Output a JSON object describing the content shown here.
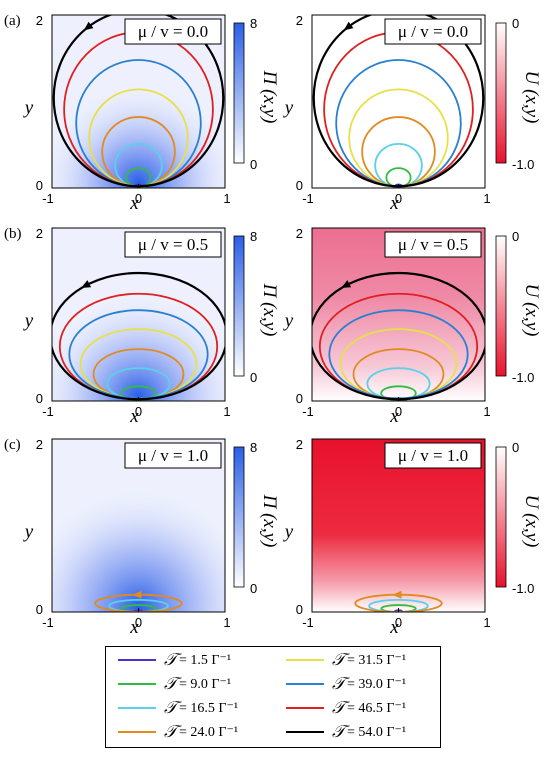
{
  "chart_data": [
    {
      "type": "heatmap",
      "panel_label": "(a)",
      "quantity": "Π (x,y)",
      "xlim": [
        -1,
        1
      ],
      "ylim": [
        0,
        2
      ],
      "x_ticks": [
        "-1",
        "0",
        "1"
      ],
      "y_ticks": [
        "0",
        "2"
      ],
      "xlabel": "x",
      "ylabel": "y",
      "annotation": "μ / v = 0.0",
      "colorbar": {
        "label": "Π (x,y)",
        "min": "0",
        "max": "8",
        "cmap": [
          "#ffffff",
          "#2a5fe6"
        ]
      }
    },
    {
      "type": "heatmap",
      "panel_label": "",
      "quantity": "U (x,y)",
      "xlim": [
        -1,
        1
      ],
      "ylim": [
        0,
        2
      ],
      "x_ticks": [
        "-1",
        "0",
        "1"
      ],
      "y_ticks": [
        "0",
        "2"
      ],
      "xlabel": "x",
      "ylabel": "y",
      "annotation": "μ / v = 0.0",
      "colorbar": {
        "label": "U (x,y)",
        "min": "-1.0",
        "max": "0",
        "cmap": [
          "#e8112d",
          "#ffffff"
        ]
      }
    },
    {
      "type": "heatmap",
      "panel_label": "(b)",
      "quantity": "Π (x,y)",
      "xlim": [
        -1,
        1
      ],
      "ylim": [
        0,
        2
      ],
      "x_ticks": [
        "-1",
        "0",
        "1"
      ],
      "y_ticks": [
        "0",
        "2"
      ],
      "xlabel": "x",
      "ylabel": "y",
      "annotation": "μ / v = 0.5",
      "colorbar": {
        "label": "Π (x,y)",
        "min": "0",
        "max": "8",
        "cmap": [
          "#ffffff",
          "#2a5fe6"
        ]
      }
    },
    {
      "type": "heatmap",
      "panel_label": "",
      "quantity": "U (x,y)",
      "xlim": [
        -1,
        1
      ],
      "ylim": [
        0,
        2
      ],
      "x_ticks": [
        "-1",
        "0",
        "1"
      ],
      "y_ticks": [
        "0",
        "2"
      ],
      "xlabel": "x",
      "ylabel": "y",
      "annotation": "μ / v = 0.5",
      "colorbar": {
        "label": "U (x,y)",
        "min": "-1.0",
        "max": "0",
        "cmap": [
          "#e8112d",
          "#ffffff"
        ]
      }
    },
    {
      "type": "heatmap",
      "panel_label": "(c)",
      "quantity": "Π (x,y)",
      "xlim": [
        -1,
        1
      ],
      "ylim": [
        0,
        2
      ],
      "x_ticks": [
        "-1",
        "0",
        "1"
      ],
      "y_ticks": [
        "0",
        "2"
      ],
      "xlabel": "x",
      "ylabel": "y",
      "annotation": "μ / v = 1.0",
      "colorbar": {
        "label": "Π (x,y)",
        "min": "0",
        "max": "8",
        "cmap": [
          "#ffffff",
          "#2a5fe6"
        ]
      }
    },
    {
      "type": "heatmap",
      "panel_label": "",
      "quantity": "U (x,y)",
      "xlim": [
        -1,
        1
      ],
      "ylim": [
        0,
        2
      ],
      "x_ticks": [
        "-1",
        "0",
        "1"
      ],
      "y_ticks": [
        "0",
        "2"
      ],
      "xlabel": "x",
      "ylabel": "y",
      "annotation": "μ / v = 1.0",
      "colorbar": {
        "label": "U (x,y)",
        "min": "-1.0",
        "max": "0",
        "cmap": [
          "#e8112d",
          "#ffffff"
        ]
      }
    }
  ],
  "contours": {
    "rows": [
      {
        "mu_over_v": 0.0,
        "curves": [
          {
            "T": 1.5,
            "cx": 0.0,
            "cy": 0.02,
            "rx": 0.04,
            "ry": 0.02
          },
          {
            "T": 9.0,
            "cx": 0.0,
            "cy": 0.12,
            "rx": 0.14,
            "ry": 0.11
          },
          {
            "T": 16.5,
            "cx": 0.0,
            "cy": 0.26,
            "rx": 0.27,
            "ry": 0.25
          },
          {
            "T": 24.0,
            "cx": 0.0,
            "cy": 0.42,
            "rx": 0.42,
            "ry": 0.4
          },
          {
            "T": 31.5,
            "cx": 0.0,
            "cy": 0.58,
            "rx": 0.57,
            "ry": 0.56
          },
          {
            "T": 39.0,
            "cx": 0.0,
            "cy": 0.75,
            "rx": 0.72,
            "ry": 0.73
          },
          {
            "T": 46.5,
            "cx": 0.0,
            "cy": 0.91,
            "rx": 0.86,
            "ry": 0.89
          },
          {
            "T": 54.0,
            "cx": 0.0,
            "cy": 1.04,
            "rx": 0.98,
            "ry": 1.02
          }
        ]
      },
      {
        "mu_over_v": 0.5,
        "curves": [
          {
            "T": 1.5,
            "cx": 0.0,
            "cy": 0.02,
            "rx": 0.04,
            "ry": 0.015
          },
          {
            "T": 9.0,
            "cx": 0.0,
            "cy": 0.09,
            "rx": 0.2,
            "ry": 0.08
          },
          {
            "T": 16.5,
            "cx": 0.0,
            "cy": 0.2,
            "rx": 0.36,
            "ry": 0.18
          },
          {
            "T": 24.0,
            "cx": 0.0,
            "cy": 0.31,
            "rx": 0.52,
            "ry": 0.29
          },
          {
            "T": 31.5,
            "cx": 0.0,
            "cy": 0.43,
            "rx": 0.67,
            "ry": 0.4
          },
          {
            "T": 39.0,
            "cx": 0.0,
            "cy": 0.54,
            "rx": 0.8,
            "ry": 0.51
          },
          {
            "T": 46.5,
            "cx": 0.0,
            "cy": 0.63,
            "rx": 0.91,
            "ry": 0.61
          },
          {
            "T": 54.0,
            "cx": 0.0,
            "cy": 0.75,
            "rx": 1.02,
            "ry": 0.73
          }
        ]
      },
      {
        "mu_over_v": 1.0,
        "curves": [
          {
            "T": 1.5,
            "cx": 0.0,
            "cy": 0.01,
            "rx": 0.04,
            "ry": 0.01
          },
          {
            "T": 9.0,
            "cx": 0.0,
            "cy": 0.04,
            "rx": 0.2,
            "ry": 0.04
          },
          {
            "T": 16.5,
            "cx": 0.0,
            "cy": 0.07,
            "rx": 0.34,
            "ry": 0.07
          },
          {
            "T": 24.0,
            "cx": 0.0,
            "cy": 0.1,
            "rx": 0.5,
            "ry": 0.1
          }
        ]
      }
    ]
  },
  "legend": {
    "items": [
      {
        "symbol": "𝒯",
        "text": "= 1.5 Γ⁻¹",
        "color": "#4433cc"
      },
      {
        "symbol": "𝒯",
        "text": "= 31.5 Γ⁻¹",
        "color": "#e6e04a"
      },
      {
        "symbol": "𝒯",
        "text": "= 9.0 Γ⁻¹",
        "color": "#33bb44"
      },
      {
        "symbol": "𝒯",
        "text": "= 39.0 Γ⁻¹",
        "color": "#2a7fd0"
      },
      {
        "symbol": "𝒯",
        "text": "= 16.5 Γ⁻¹",
        "color": "#5ad0ea"
      },
      {
        "symbol": "𝒯",
        "text": "= 46.5 Γ⁻¹",
        "color": "#e02020"
      },
      {
        "symbol": "𝒯",
        "text": "= 24.0 Γ⁻¹",
        "color": "#e08a20"
      },
      {
        "symbol": "𝒯",
        "text": "= 54.0 Γ⁻¹",
        "color": "#000000"
      }
    ]
  },
  "colors": {
    "pi_max": "#2a5fe6",
    "u_min": "#e8112d"
  }
}
